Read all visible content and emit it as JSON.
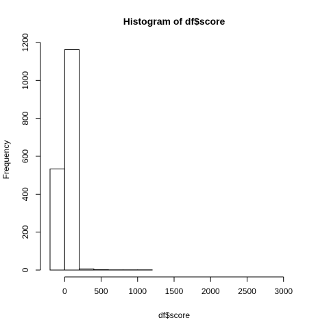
{
  "chart_data": {
    "type": "bar",
    "title": "Histogram of df$score",
    "xlabel": "df$score",
    "ylabel": "Frequency",
    "bin_edges": [
      -200,
      0,
      200,
      400,
      600,
      800,
      1000,
      1200,
      1400,
      1600,
      1800,
      2000,
      2200,
      2400,
      2600,
      2800,
      3000,
      3200
    ],
    "values": [
      533,
      1162,
      6,
      2,
      1,
      1,
      1,
      0,
      0,
      0,
      0,
      0,
      0,
      0,
      0,
      0,
      0
    ],
    "xlim": [
      -200,
      3200
    ],
    "ylim": [
      0,
      1200
    ],
    "x_ticks": [
      0,
      500,
      1000,
      1500,
      2000,
      2500,
      3000
    ],
    "x_tick_labels": [
      "0",
      "500",
      "1000",
      "1500",
      "2000",
      "2500",
      "3000"
    ],
    "y_ticks": [
      0,
      200,
      400,
      600,
      800,
      1000,
      1200
    ],
    "y_tick_labels": [
      "0",
      "200",
      "400",
      "600",
      "800",
      "1000",
      "1200"
    ],
    "grid": false
  }
}
